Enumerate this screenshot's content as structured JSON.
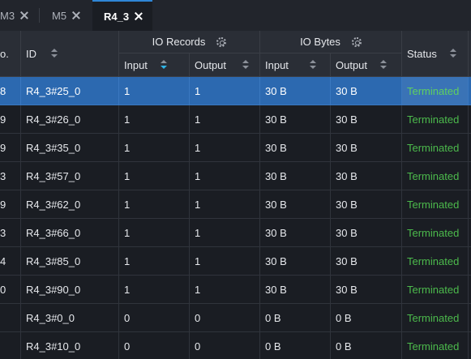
{
  "tabs": [
    {
      "label": "M3",
      "active": false
    },
    {
      "label": "M5",
      "active": false
    },
    {
      "label": "R4_3",
      "active": true
    }
  ],
  "table": {
    "headers": {
      "no": "o.",
      "id": "ID",
      "io_records": "IO Records",
      "io_bytes": "IO Bytes",
      "records_input": "Input",
      "records_output": "Output",
      "bytes_input": "Input",
      "bytes_output": "Output",
      "status": "Status"
    },
    "rows": [
      {
        "no": "8",
        "id": "R4_3#25_0",
        "rin": "1",
        "rout": "1",
        "bin": "30 B",
        "bout": "30 B",
        "status": "Terminated",
        "selected": true
      },
      {
        "no": "9",
        "id": "R4_3#26_0",
        "rin": "1",
        "rout": "1",
        "bin": "30 B",
        "bout": "30 B",
        "status": "Terminated"
      },
      {
        "no": "9",
        "id": "R4_3#35_0",
        "rin": "1",
        "rout": "1",
        "bin": "30 B",
        "bout": "30 B",
        "status": "Terminated"
      },
      {
        "no": "3",
        "id": "R4_3#57_0",
        "rin": "1",
        "rout": "1",
        "bin": "30 B",
        "bout": "30 B",
        "status": "Terminated"
      },
      {
        "no": "9",
        "id": "R4_3#62_0",
        "rin": "1",
        "rout": "1",
        "bin": "30 B",
        "bout": "30 B",
        "status": "Terminated"
      },
      {
        "no": "3",
        "id": "R4_3#66_0",
        "rin": "1",
        "rout": "1",
        "bin": "30 B",
        "bout": "30 B",
        "status": "Terminated"
      },
      {
        "no": "4",
        "id": "R4_3#85_0",
        "rin": "1",
        "rout": "1",
        "bin": "30 B",
        "bout": "30 B",
        "status": "Terminated"
      },
      {
        "no": "0",
        "id": "R4_3#90_0",
        "rin": "1",
        "rout": "1",
        "bin": "30 B",
        "bout": "30 B",
        "status": "Terminated"
      },
      {
        "no": "",
        "id": "R4_3#0_0",
        "rin": "0",
        "rout": "0",
        "bin": "0 B",
        "bout": "0 B",
        "status": "Terminated"
      },
      {
        "no": "",
        "id": "R4_3#10_0",
        "rin": "0",
        "rout": "0",
        "bin": "0 B",
        "bout": "0 B",
        "status": "Terminated"
      }
    ]
  },
  "colors": {
    "selected_row": "#2c69b0",
    "status_terminated": "#4cba4c",
    "header_bg": "#2a2e36"
  }
}
